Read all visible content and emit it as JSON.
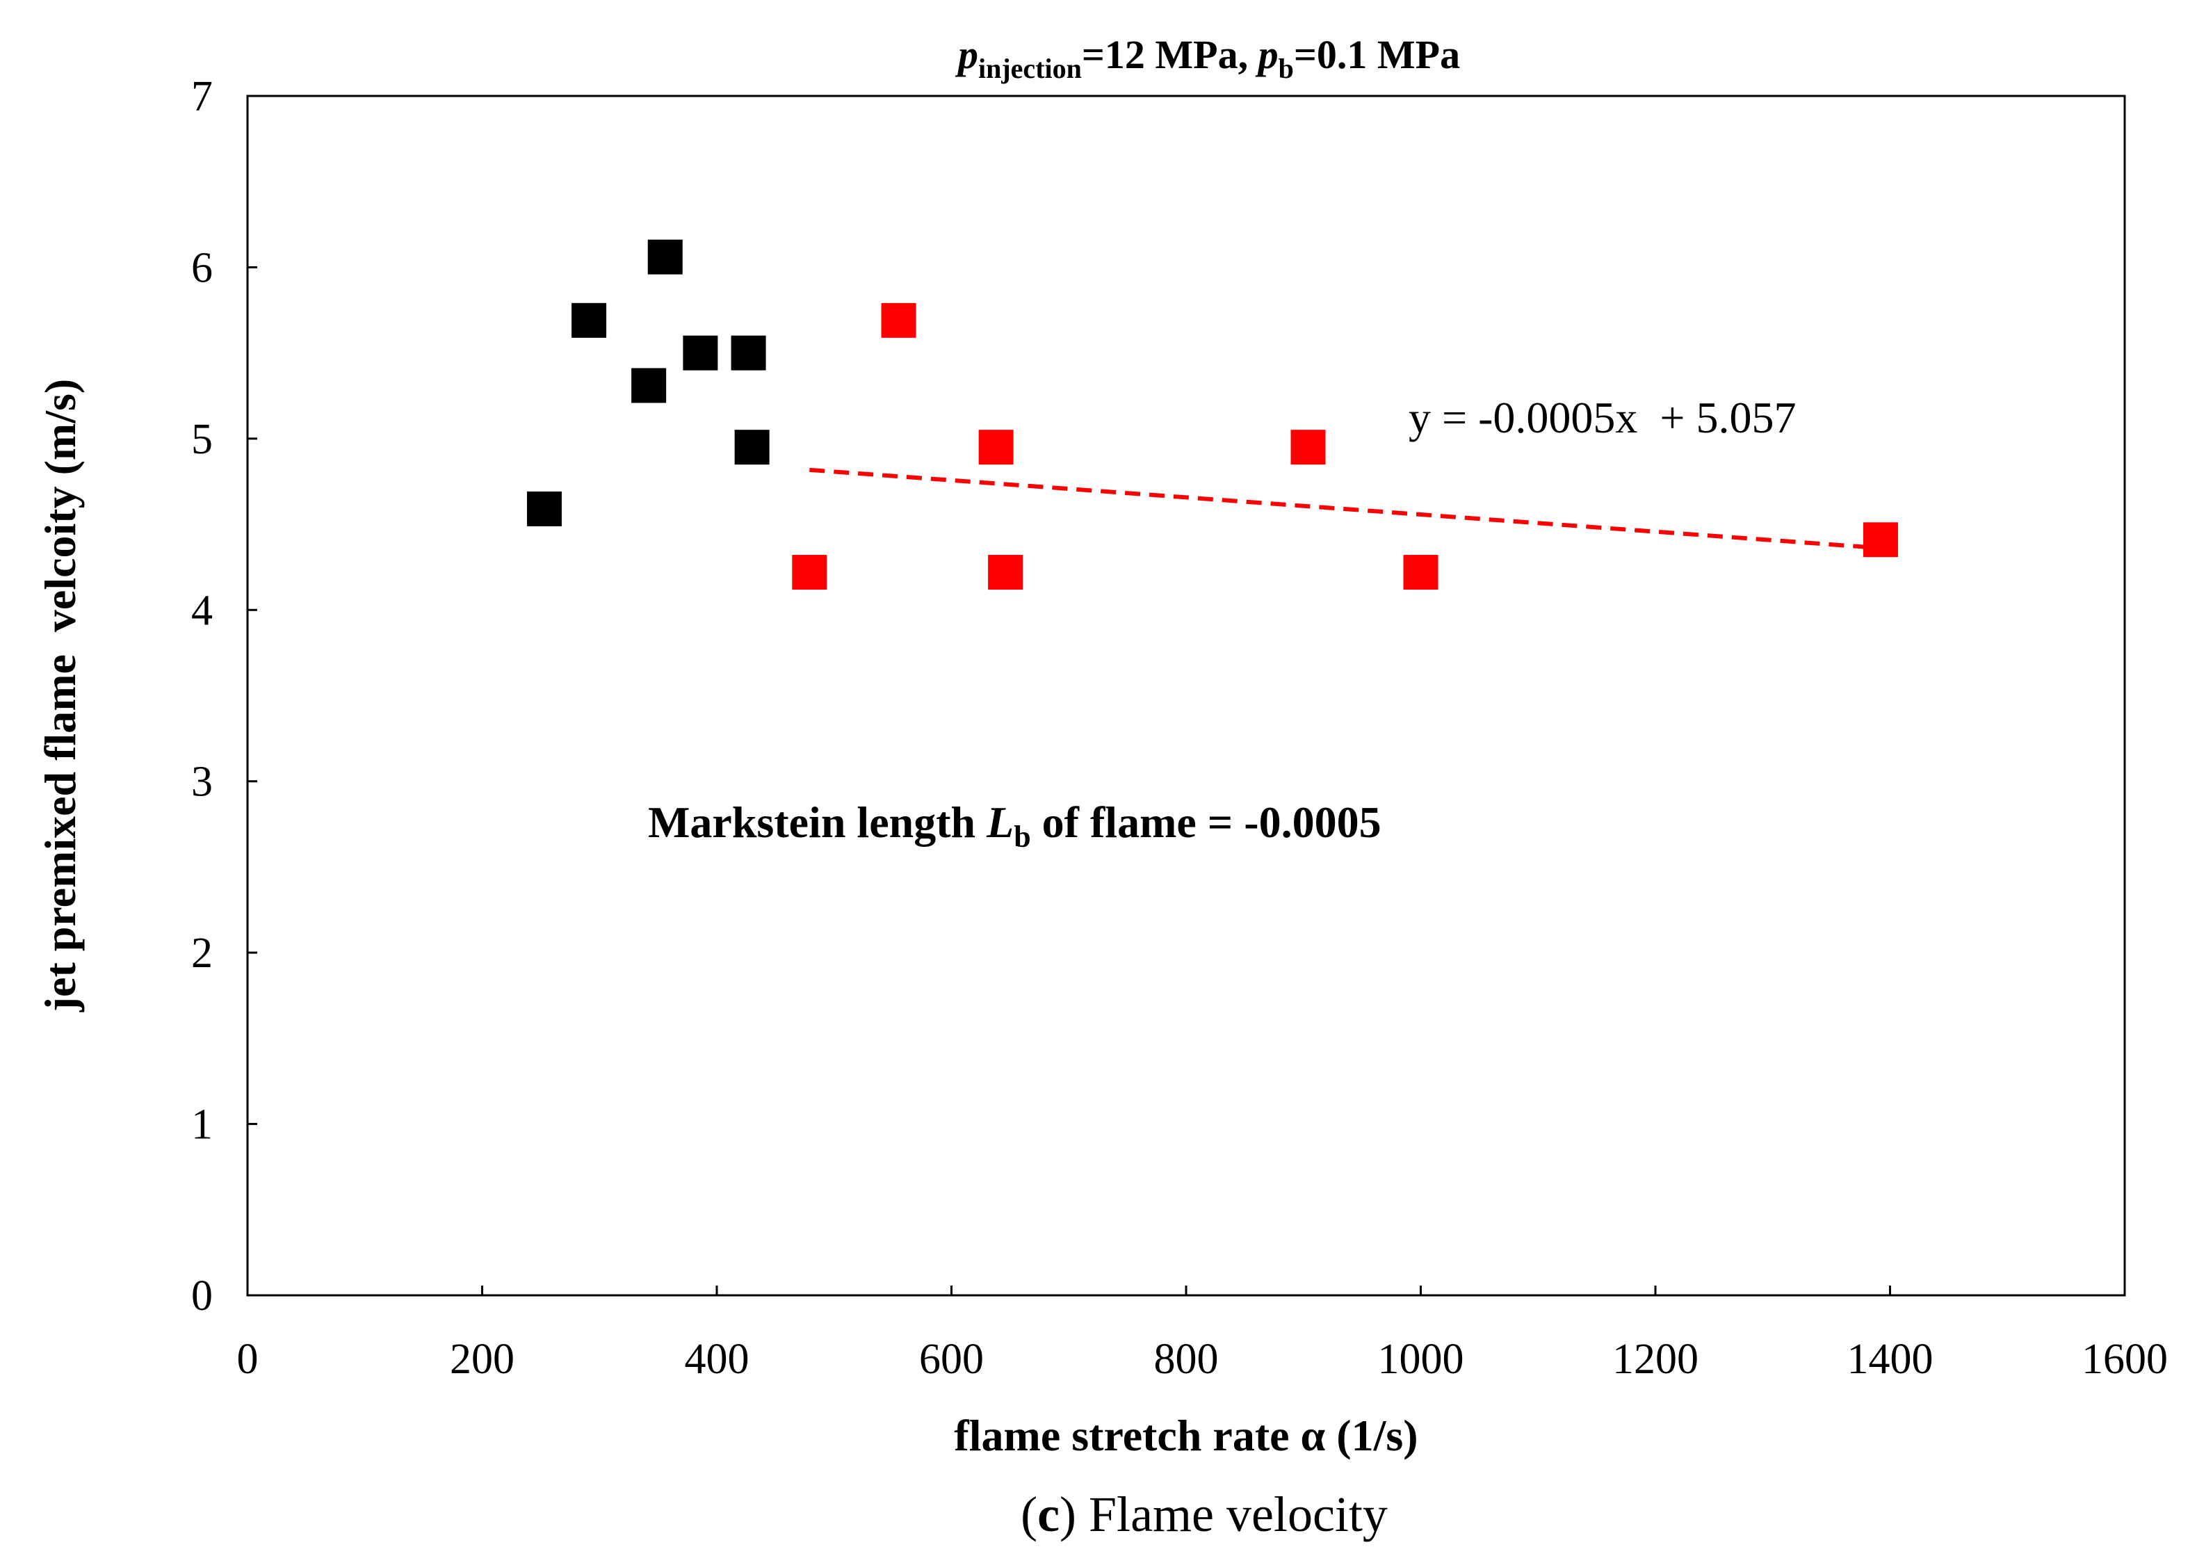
{
  "chart_data": {
    "type": "scatter",
    "title": {
      "p_symbol": "p",
      "p_sub": "injection",
      "p_value": "=12 MPa, ",
      "pb_symbol": "p",
      "pb_sub": "b",
      "pb_value": "=0.1 MPa"
    },
    "xlabel": "flame stretch rate α (1/s)",
    "ylabel": "jet premixed flame  velcoity (m/s)",
    "xlim": [
      0,
      1600
    ],
    "ylim": [
      0,
      7
    ],
    "xticks": [
      "0",
      "200",
      "400",
      "600",
      "800",
      "1000",
      "1200",
      "1400",
      "1600"
    ],
    "yticks": [
      "0",
      "1",
      "2",
      "3",
      "4",
      "5",
      "6",
      "7"
    ],
    "grid": false,
    "series": [
      {
        "name": "black",
        "color": "#000000",
        "marker": "square",
        "x": [
          253,
          291,
          342,
          356,
          386,
          427,
          430
        ],
        "y": [
          4.59,
          5.69,
          5.31,
          6.06,
          5.5,
          5.5,
          4.95
        ]
      },
      {
        "name": "red",
        "color": "#ff0000",
        "marker": "square",
        "x": [
          479,
          555,
          638,
          646,
          904,
          1000,
          1392
        ],
        "y": [
          4.22,
          5.69,
          4.95,
          4.22,
          4.95,
          4.22,
          4.41
        ]
      }
    ],
    "trendline": {
      "color": "#ff0000",
      "style": "dashed",
      "x_range": [
        479,
        1392
      ],
      "slope": -0.0005,
      "intercept": 5.057,
      "equation": "y = -0.0005x  + 5.057"
    },
    "annotation": {
      "prefix": "Markstein length ",
      "symbol": "L",
      "sub": "b",
      "suffix": " of flame = -0.0005"
    }
  },
  "caption": {
    "letter": "c",
    "text": " Flame velocity"
  }
}
